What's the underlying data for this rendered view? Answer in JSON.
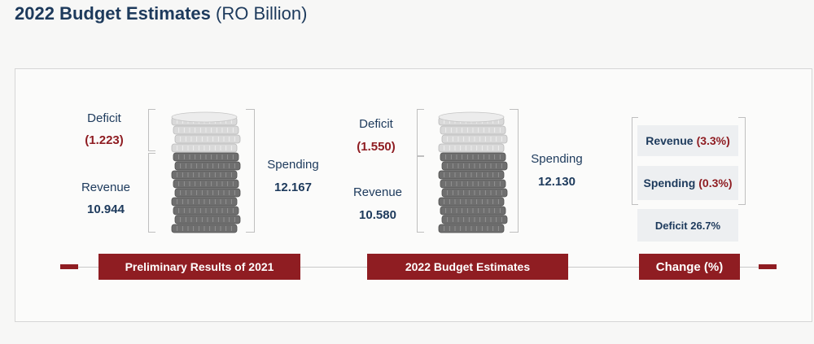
{
  "title": {
    "main": "2022 Budget Estimates",
    "unit": "(RO Billion)"
  },
  "preliminary_2021": {
    "deficit_label": "Deficit",
    "deficit_value": "(1.223)",
    "revenue_label": "Revenue",
    "revenue_value": "10.944",
    "spending_label": "Spending",
    "spending_value": "12.167",
    "band_label": "Preliminary Results of 2021"
  },
  "budget_2022": {
    "deficit_label": "Deficit",
    "deficit_value": "(1.550)",
    "revenue_label": "Revenue",
    "revenue_value": "10.580",
    "spending_label": "Spending",
    "spending_value": "12.130",
    "band_label": "2022 Budget Estimates"
  },
  "change": {
    "revenue_label": "Revenue",
    "revenue_value": "(3.3%)",
    "spending_label": "Spending",
    "spending_value": "(0.3%)",
    "deficit_text": "Deficit 26.7%",
    "band_label": "Change (%)"
  },
  "colors": {
    "accent": "#8f1d22",
    "navy": "#1d3a5c"
  },
  "icons": [
    "coin-stack-icon"
  ]
}
